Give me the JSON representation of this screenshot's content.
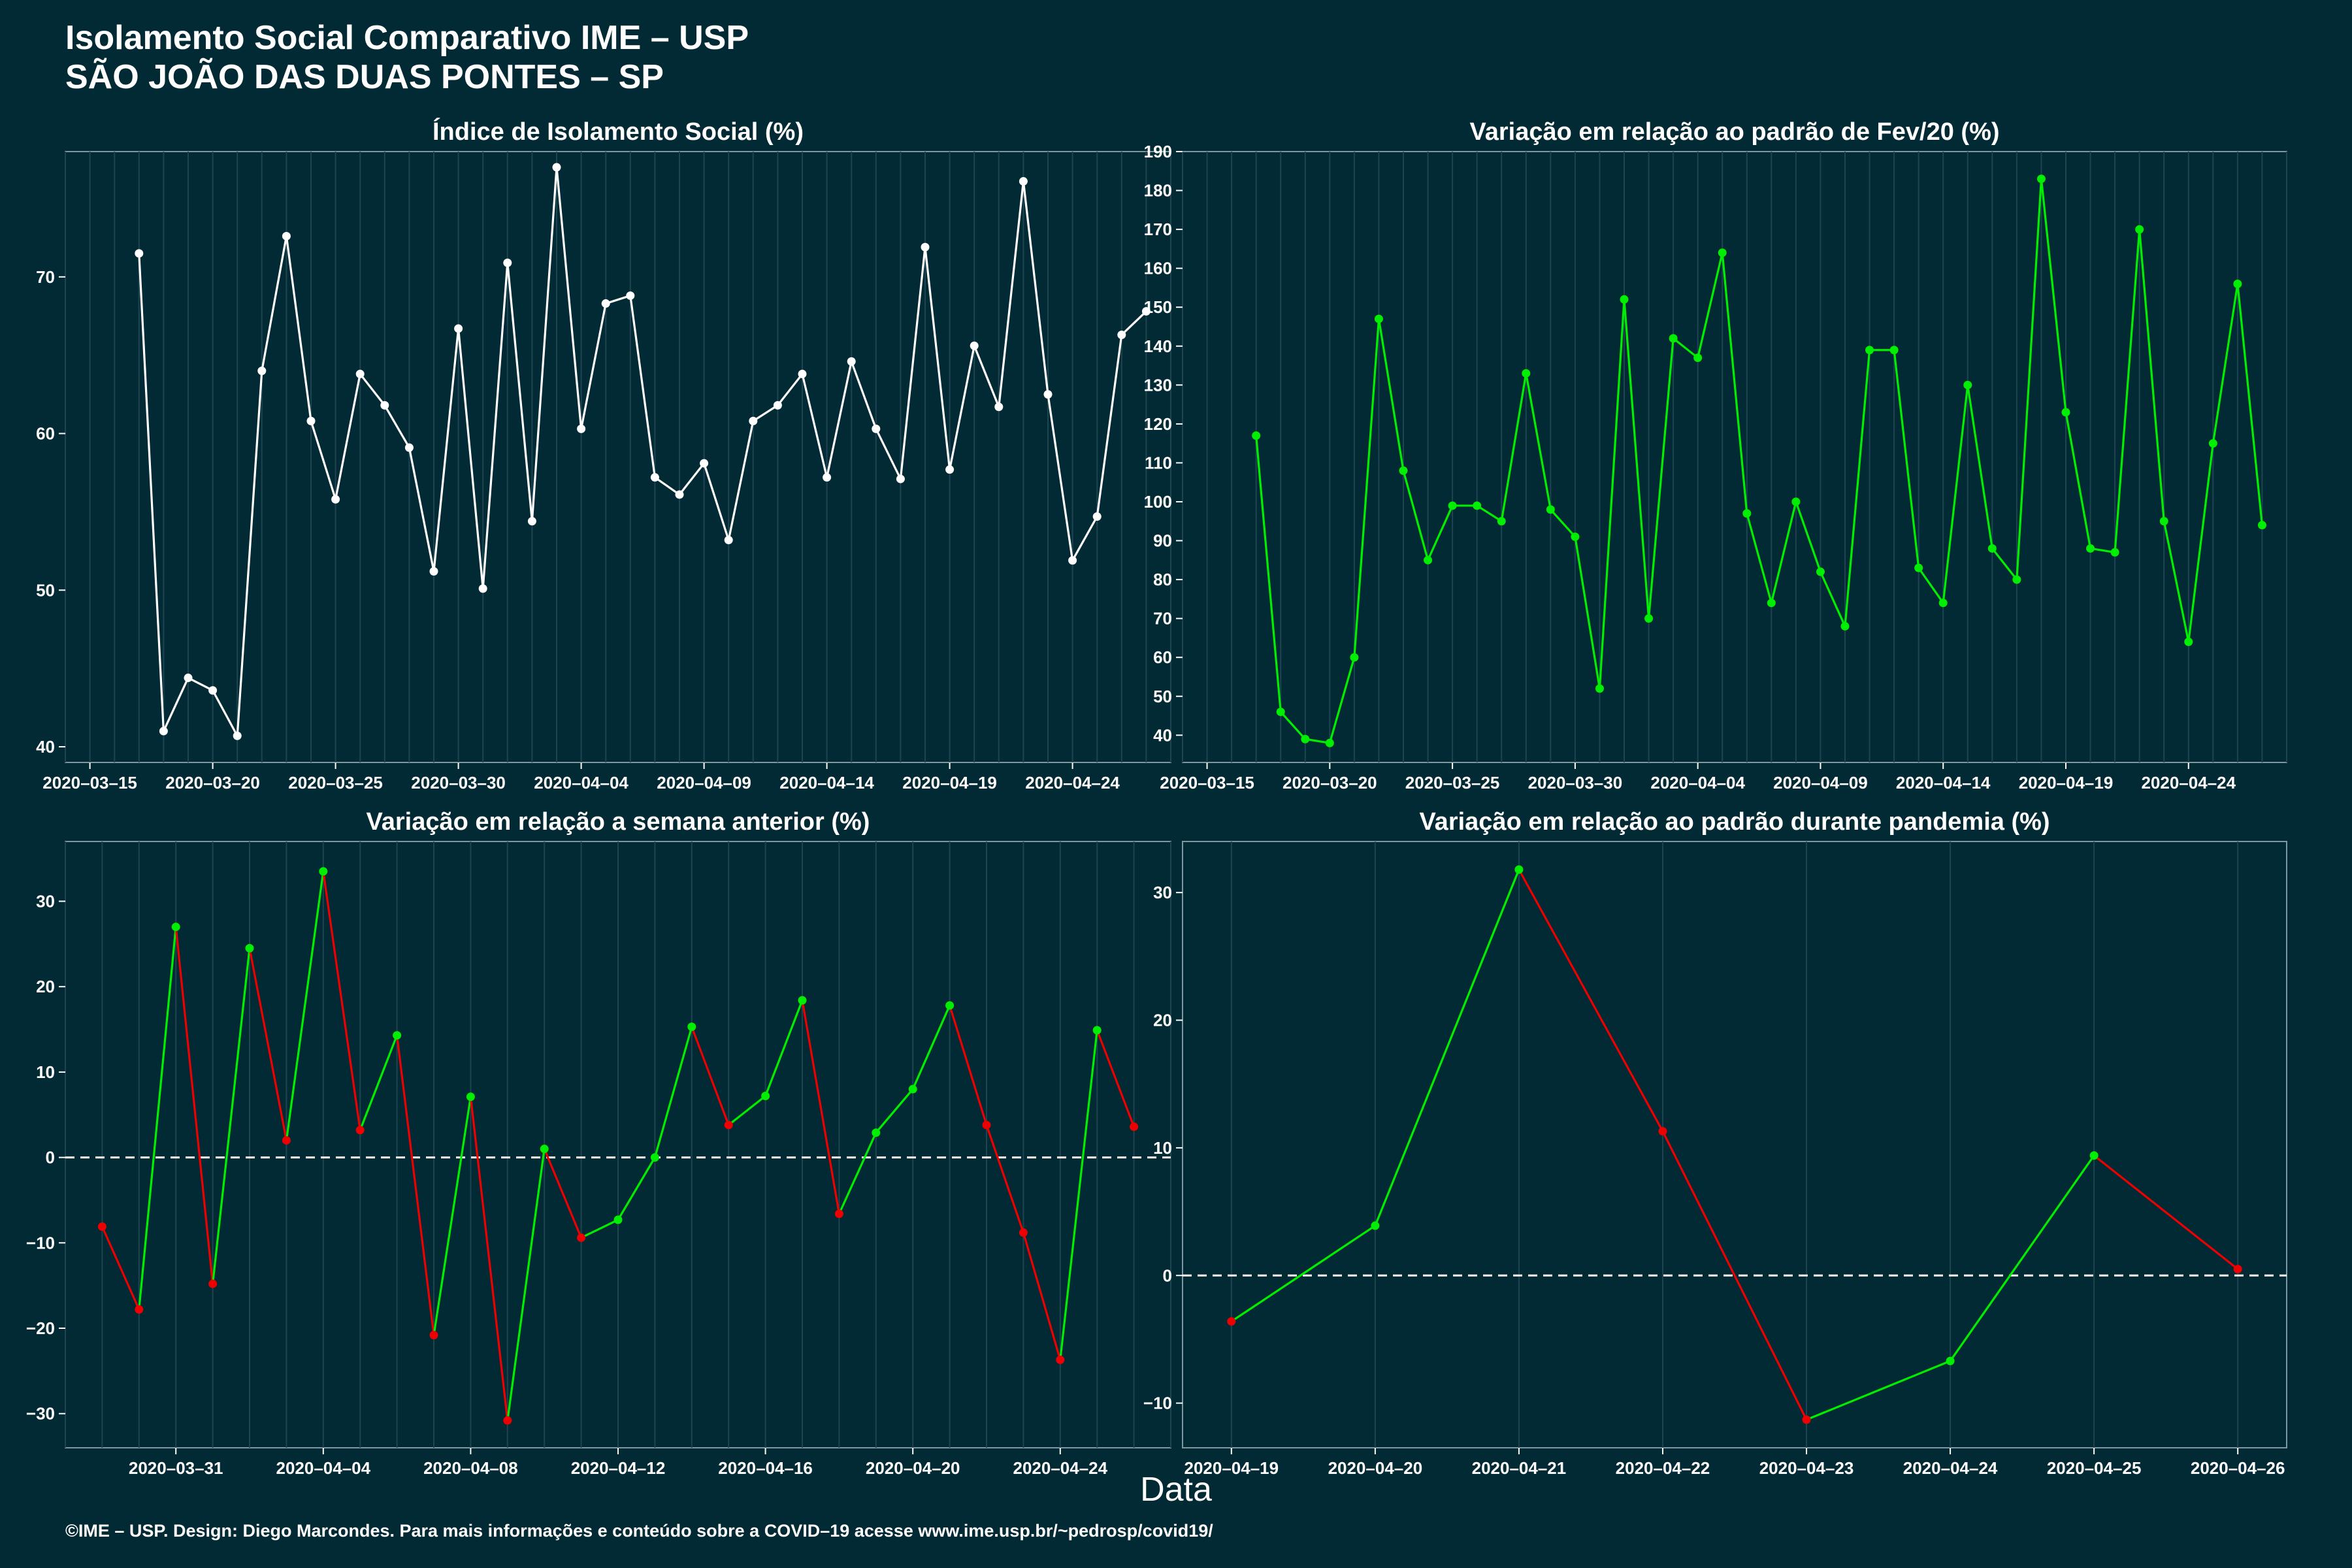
{
  "header": {
    "title_line1": "Isolamento Social Comparativo IME – USP",
    "title_line2": "SÃO JOÃO DAS DUAS PONTES – SP"
  },
  "xlabel": "Data",
  "footer": "©IME – USP. Design: Diego Marcondes. Para mais informações e conteúdo sobre a COVID–19 acesse www.ime.usp.br/~pedrosp/covid19/",
  "colors": {
    "background": "#022a35",
    "white": "#ffffff",
    "green": "#00ee00",
    "red": "#ee0000",
    "grid": "#1e4450"
  },
  "chart_data": [
    {
      "type": "line",
      "title": "Índice de Isolamento Social (%)",
      "color_mode": "white",
      "x_start": "2020-03-17",
      "x_step_days": 1,
      "x_range": [
        "2020-03-14",
        "2020-04-28"
      ],
      "y_range": [
        39,
        78
      ],
      "y_ticks": [
        40,
        50,
        60,
        70
      ],
      "x_ticks": [
        "2020–03–15",
        "2020–03–20",
        "2020–03–25",
        "2020–03–30",
        "2020–04–04",
        "2020–04–09",
        "2020–04–14",
        "2020–04–19",
        "2020–04–24"
      ],
      "x_tick_dates": [
        "2020-03-15",
        "2020-03-20",
        "2020-03-25",
        "2020-03-30",
        "2020-04-04",
        "2020-04-09",
        "2020-04-14",
        "2020-04-19",
        "2020-04-24"
      ],
      "baseline": null,
      "values": [
        71.5,
        41.0,
        44.4,
        43.6,
        40.7,
        64.0,
        72.6,
        60.8,
        55.8,
        63.8,
        61.8,
        59.1,
        51.2,
        66.7,
        50.1,
        70.9,
        54.4,
        77.0,
        60.3,
        68.3,
        68.8,
        57.2,
        56.1,
        58.1,
        53.2,
        60.8,
        61.8,
        63.8,
        57.2,
        64.6,
        60.3,
        57.1,
        71.9,
        57.7,
        65.6,
        61.7,
        76.1,
        62.5,
        51.9,
        54.7,
        66.3,
        67.8
      ]
    },
    {
      "type": "line",
      "title": "Variação em relação ao padrão de Fev/20 (%)",
      "color_mode": "green",
      "x_start": "2020-03-17",
      "x_step_days": 1,
      "x_range": [
        "2020-03-14",
        "2020-04-28"
      ],
      "y_range": [
        33,
        190
      ],
      "y_ticks": [
        40,
        50,
        60,
        70,
        80,
        90,
        100,
        110,
        120,
        130,
        140,
        150,
        160,
        170,
        180,
        190
      ],
      "x_ticks": [
        "2020–03–15",
        "2020–03–20",
        "2020–03–25",
        "2020–03–30",
        "2020–04–04",
        "2020–04–09",
        "2020–04–14",
        "2020–04–19",
        "2020–04–24"
      ],
      "x_tick_dates": [
        "2020-03-15",
        "2020-03-20",
        "2020-03-25",
        "2020-03-30",
        "2020-04-04",
        "2020-04-09",
        "2020-04-14",
        "2020-04-19",
        "2020-04-24"
      ],
      "baseline": null,
      "values": [
        117,
        46,
        39,
        38,
        60,
        147,
        108,
        85,
        99,
        99,
        95,
        133,
        98,
        91,
        52,
        152,
        70,
        142,
        137,
        164,
        97,
        74,
        100,
        82,
        68,
        139,
        139,
        83,
        74,
        130,
        88,
        80,
        183,
        123,
        88,
        87,
        170,
        95,
        64,
        115,
        156,
        94
      ]
    },
    {
      "type": "line",
      "title": "Variação em relação a semana anterior (%)",
      "color_mode": "updown",
      "x_start": "2020-03-29",
      "x_step_days": 1,
      "x_range": [
        "2020-03-28",
        "2020-04-27"
      ],
      "y_range": [
        -34,
        37
      ],
      "y_ticks": [
        -30,
        -20,
        -10,
        0,
        10,
        20,
        30
      ],
      "x_ticks": [
        "2020–03–31",
        "2020–04–04",
        "2020–04–08",
        "2020–04–12",
        "2020–04–16",
        "2020–04–20",
        "2020–04–24"
      ],
      "x_tick_dates": [
        "2020-03-31",
        "2020-04-04",
        "2020-04-08",
        "2020-04-12",
        "2020-04-16",
        "2020-04-20",
        "2020-04-24"
      ],
      "baseline": 0,
      "values": [
        -8.1,
        -17.8,
        27.0,
        -14.8,
        24.5,
        2.0,
        33.5,
        3.2,
        14.3,
        -20.8,
        7.1,
        -30.8,
        1.0,
        -9.4,
        -7.3,
        0.0,
        15.3,
        3.8,
        7.2,
        18.4,
        -6.6,
        2.9,
        8.0,
        17.8,
        3.8,
        -8.8,
        -23.7,
        14.9,
        3.6
      ]
    },
    {
      "type": "line",
      "title": "Variação em relação ao padrão durante pandemia (%)",
      "color_mode": "updown",
      "x_start": "2020-04-19",
      "x_step_days": 1,
      "x_range": [
        "2020-04-18.66",
        "2020-04-26.34"
      ],
      "y_range": [
        -13.5,
        34
      ],
      "y_ticks": [
        -10,
        0,
        10,
        20,
        30
      ],
      "x_ticks": [
        "2020–04–19",
        "2020–04–20",
        "2020–04–21",
        "2020–04–22",
        "2020–04–23",
        "2020–04–24",
        "2020–04–25",
        "2020–04–26"
      ],
      "x_tick_dates": [
        "2020-04-19",
        "2020-04-20",
        "2020-04-21",
        "2020-04-22",
        "2020-04-23",
        "2020-04-24",
        "2020-04-25",
        "2020-04-26"
      ],
      "baseline": 0,
      "values": [
        -3.6,
        3.9,
        31.8,
        11.3,
        -11.3,
        -6.7,
        9.4,
        0.5
      ]
    }
  ]
}
